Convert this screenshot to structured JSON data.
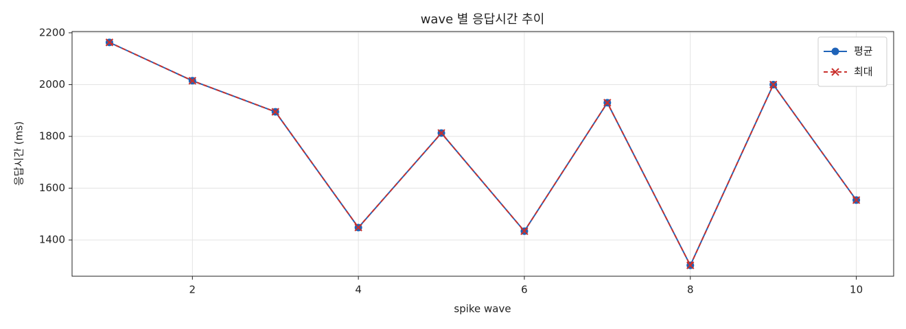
{
  "chart_data": {
    "type": "line",
    "title": "wave 별 응답시간 추이",
    "x_label": "spike wave",
    "y_label": "응답시간 (ms)",
    "x": [
      1,
      2,
      3,
      4,
      5,
      6,
      7,
      8,
      9,
      10
    ],
    "series": [
      {
        "name": "평균",
        "color": "#1f63b8",
        "linestyle": "solid",
        "marker": "o",
        "values": [
          2163,
          2015,
          1895,
          1448,
          1813,
          1434,
          1930,
          1302,
          2000,
          1554
        ]
      },
      {
        "name": "최대",
        "color": "#c9302c",
        "linestyle": "dashed",
        "marker": "x",
        "values": [
          2163,
          2015,
          1895,
          1448,
          1813,
          1434,
          1930,
          1302,
          2000,
          1554
        ]
      }
    ],
    "xlim": [
      0.55,
      10.45
    ],
    "xticks": [
      2,
      4,
      6,
      8,
      10
    ],
    "ylim": [
      1260,
      2205
    ],
    "yticks": [
      1400,
      1600,
      1800,
      2000,
      2200
    ],
    "grid": true,
    "legend": "upper right"
  }
}
